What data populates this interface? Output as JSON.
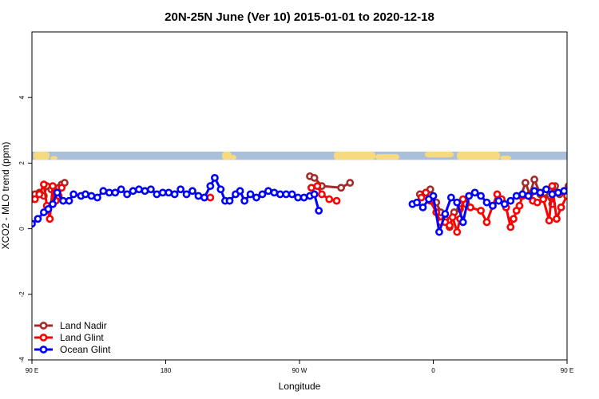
{
  "chart_data": {
    "type": "line",
    "title": "20N-25N June (Ver 10)   2015-01-01 to 2020-12-18",
    "xlabel": "Longitude",
    "ylabel": "XCO2 - MLO trend (ppm)",
    "xlim": [
      90,
      450
    ],
    "ylim": [
      -4,
      6
    ],
    "x_ticks": [
      {
        "value": 90,
        "label": "90 E"
      },
      {
        "value": 180,
        "label": "180"
      },
      {
        "value": 270,
        "label": "90 W"
      },
      {
        "value": 360,
        "label": "0"
      },
      {
        "value": 450,
        "label": "90 E"
      },
      {
        "value": 540,
        "label": "180"
      }
    ],
    "y_ticks": [
      {
        "value": -4,
        "label": "-4"
      },
      {
        "value": -2,
        "label": "-2"
      },
      {
        "value": 0,
        "label": "0"
      },
      {
        "value": 2,
        "label": "2"
      },
      {
        "value": 4,
        "label": "4"
      }
    ],
    "grid": false,
    "legend_position": "bottom-left",
    "map_strip": {
      "y_range": [
        2.1,
        2.35
      ],
      "ocean_color": "#a9bfda",
      "land_color": "#f7d97f"
    },
    "series": [
      {
        "name": "Land Nadir",
        "color": "#a52a2a",
        "points": [
          [
            90,
            0.95
          ],
          [
            92,
            1.05
          ],
          [
            95,
            1.1
          ],
          [
            98,
            1.0
          ],
          [
            100,
            1.3
          ],
          [
            103,
            1.2
          ],
          [
            106,
            0.95
          ],
          [
            108,
            1.25
          ],
          [
            110,
            1.35
          ],
          [
            112,
            1.4
          ],
          [
            277,
            1.6
          ],
          [
            280,
            1.55
          ],
          [
            285,
            1.3
          ],
          [
            298,
            1.25
          ],
          [
            304,
            1.4
          ],
          [
            351,
            1.05
          ],
          [
            355,
            1.1
          ],
          [
            358,
            1.2
          ],
          [
            362,
            0.8
          ],
          [
            365,
            0.5
          ],
          [
            368,
            0.3
          ],
          [
            371,
            0.05
          ],
          [
            374,
            0.5
          ],
          [
            378,
            0.6
          ],
          [
            382,
            0.8
          ],
          [
            419,
            1.0
          ],
          [
            422,
            1.4
          ],
          [
            425,
            1.05
          ],
          [
            428,
            1.5
          ],
          [
            432,
            1.05
          ],
          [
            435,
            1.1
          ],
          [
            440,
            0.75
          ],
          [
            442,
            1.3
          ],
          [
            445,
            1.05
          ],
          [
            448,
            1.15
          ],
          [
            451,
            1.3
          ],
          [
            454,
            1.4
          ]
        ]
      },
      {
        "name": "Land Glint",
        "color": "#ff0000",
        "points": [
          [
            90,
            0.9
          ],
          [
            92,
            0.9
          ],
          [
            95,
            1.05
          ],
          [
            98,
            1.35
          ],
          [
            100,
            0.7
          ],
          [
            102,
            0.3
          ],
          [
            104,
            1.3
          ],
          [
            106,
            0.85
          ],
          [
            108,
            1.0
          ],
          [
            110,
            1.25
          ],
          [
            210,
            0.95
          ],
          [
            278,
            1.25
          ],
          [
            282,
            1.3
          ],
          [
            285,
            1.05
          ],
          [
            290,
            0.9
          ],
          [
            295,
            0.85
          ],
          [
            352,
            0.95
          ],
          [
            355,
            1.1
          ],
          [
            358,
            0.85
          ],
          [
            362,
            0.5
          ],
          [
            365,
            0.2
          ],
          [
            368,
            0.2
          ],
          [
            371,
            0.1
          ],
          [
            373,
            0.35
          ],
          [
            376,
            -0.1
          ],
          [
            378,
            0.3
          ],
          [
            380,
            0.9
          ],
          [
            382,
            0.75
          ],
          [
            385,
            0.65
          ],
          [
            392,
            0.55
          ],
          [
            396,
            0.2
          ],
          [
            400,
            0.7
          ],
          [
            403,
            1.05
          ],
          [
            406,
            0.9
          ],
          [
            409,
            0.65
          ],
          [
            412,
            0.05
          ],
          [
            414,
            0.3
          ],
          [
            416,
            0.55
          ],
          [
            418,
            0.7
          ],
          [
            420,
            1.0
          ],
          [
            427,
            0.85
          ],
          [
            430,
            0.8
          ],
          [
            434,
            0.9
          ],
          [
            438,
            0.25
          ],
          [
            440,
            1.3
          ],
          [
            443,
            0.3
          ],
          [
            446,
            0.65
          ],
          [
            450,
            1.0
          ],
          [
            453,
            1.3
          ]
        ]
      },
      {
        "name": "Ocean Glint",
        "color": "#0000ff",
        "points": [
          [
            90,
            0.15
          ],
          [
            94,
            0.3
          ],
          [
            98,
            0.5
          ],
          [
            101,
            0.6
          ],
          [
            104,
            0.75
          ],
          [
            107,
            1.1
          ],
          [
            111,
            0.85
          ],
          [
            115,
            0.85
          ],
          [
            118,
            1.05
          ],
          [
            123,
            1.0
          ],
          [
            126,
            1.05
          ],
          [
            130,
            1.0
          ],
          [
            134,
            0.95
          ],
          [
            138,
            1.15
          ],
          [
            142,
            1.1
          ],
          [
            146,
            1.1
          ],
          [
            150,
            1.2
          ],
          [
            154,
            1.05
          ],
          [
            158,
            1.15
          ],
          [
            162,
            1.2
          ],
          [
            166,
            1.15
          ],
          [
            170,
            1.2
          ],
          [
            174,
            1.05
          ],
          [
            178,
            1.1
          ],
          [
            182,
            1.1
          ],
          [
            186,
            1.05
          ],
          [
            190,
            1.2
          ],
          [
            194,
            1.05
          ],
          [
            198,
            1.15
          ],
          [
            202,
            1.0
          ],
          [
            206,
            0.95
          ],
          [
            210,
            1.3
          ],
          [
            213,
            1.55
          ],
          [
            217,
            1.2
          ],
          [
            220,
            0.85
          ],
          [
            223,
            0.85
          ],
          [
            227,
            1.05
          ],
          [
            230,
            1.15
          ],
          [
            233,
            0.85
          ],
          [
            237,
            1.05
          ],
          [
            241,
            0.95
          ],
          [
            245,
            1.05
          ],
          [
            249,
            1.15
          ],
          [
            253,
            1.1
          ],
          [
            257,
            1.05
          ],
          [
            261,
            1.05
          ],
          [
            265,
            1.05
          ],
          [
            269,
            0.95
          ],
          [
            273,
            0.95
          ],
          [
            277,
            1.0
          ],
          [
            280,
            1.05
          ],
          [
            283,
            0.55
          ],
          [
            346,
            0.75
          ],
          [
            349,
            0.8
          ],
          [
            353,
            0.65
          ],
          [
            357,
            0.9
          ],
          [
            360,
            1.0
          ],
          [
            364,
            -0.1
          ],
          [
            368,
            0.45
          ],
          [
            372,
            0.95
          ],
          [
            376,
            0.8
          ],
          [
            380,
            0.2
          ],
          [
            384,
            1.0
          ],
          [
            388,
            1.1
          ],
          [
            392,
            1.0
          ],
          [
            396,
            0.8
          ],
          [
            400,
            0.7
          ],
          [
            404,
            0.85
          ],
          [
            408,
            0.75
          ],
          [
            412,
            0.85
          ],
          [
            416,
            1.0
          ],
          [
            420,
            1.05
          ],
          [
            424,
            1.0
          ],
          [
            428,
            1.15
          ],
          [
            432,
            1.1
          ],
          [
            436,
            1.2
          ],
          [
            440,
            1.05
          ],
          [
            444,
            1.1
          ],
          [
            448,
            1.15
          ],
          [
            452,
            1.1
          ],
          [
            456,
            1.05
          ],
          [
            460,
            1.05
          ]
        ]
      }
    ]
  }
}
